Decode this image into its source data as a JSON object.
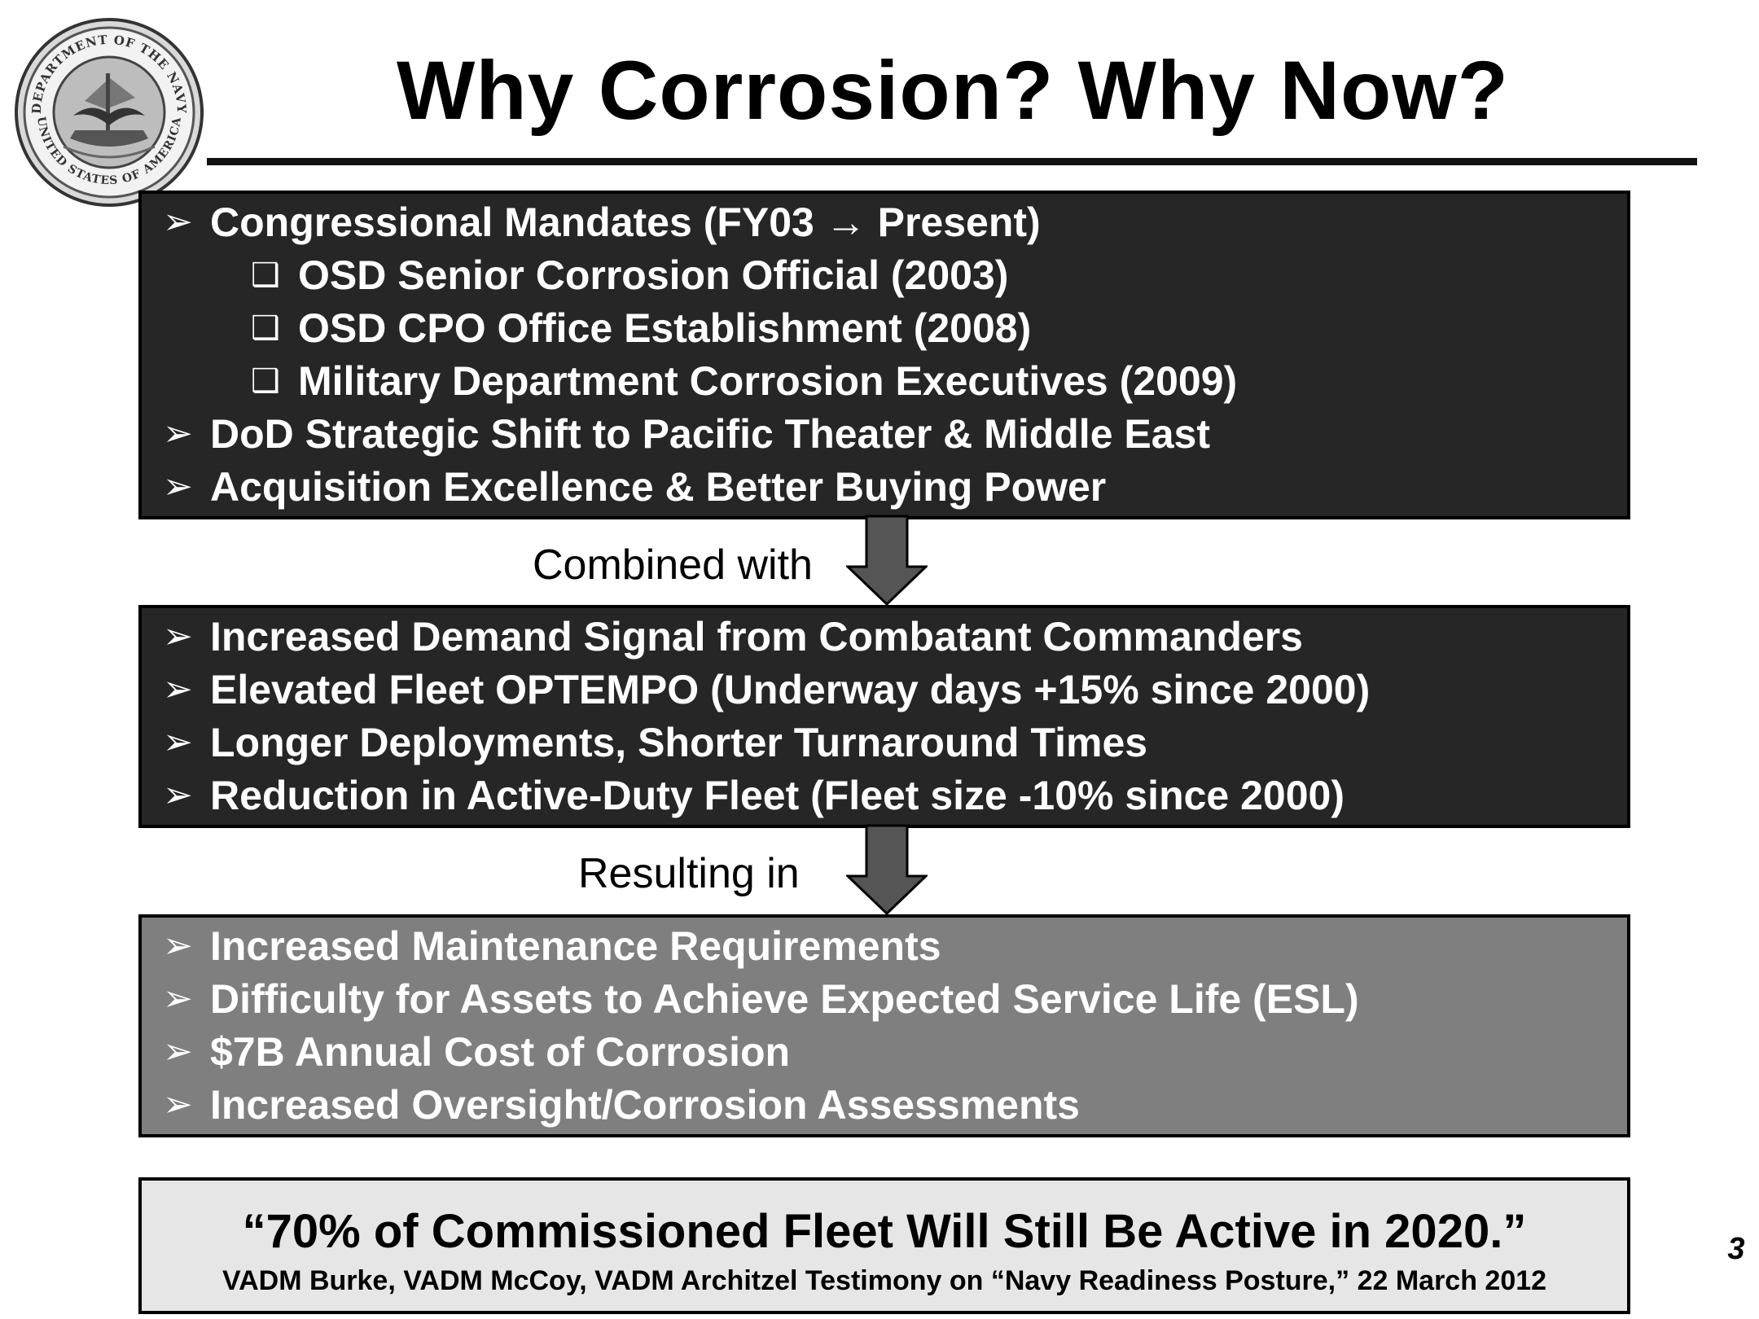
{
  "seal": {
    "top_text": "DEPARTMENT OF THE NAVY",
    "bottom_text": "UNITED STATES OF AMERICA"
  },
  "title": "Why Corrosion?  Why Now?",
  "boxes": [
    {
      "shade": "dark",
      "items": [
        {
          "level": 0,
          "bullet": "➢",
          "text": "Congressional Mandates (FY03 → Present)"
        },
        {
          "level": 1,
          "bullet": "❑",
          "text": "OSD Senior Corrosion Official  (2003)"
        },
        {
          "level": 1,
          "bullet": "❑",
          "text": "OSD CPO Office Establishment (2008)"
        },
        {
          "level": 1,
          "bullet": "❑",
          "text": "Military Department Corrosion Executives (2009)"
        },
        {
          "level": 0,
          "bullet": "➢",
          "text": "DoD Strategic Shift to Pacific Theater & Middle East"
        },
        {
          "level": 0,
          "bullet": "➢",
          "text": "Acquisition Excellence & Better Buying Power"
        }
      ]
    },
    {
      "shade": "dark",
      "items": [
        {
          "level": 0,
          "bullet": "➢",
          "text": "Increased Demand Signal from Combatant Commanders"
        },
        {
          "level": 0,
          "bullet": "➢",
          "text": "Elevated Fleet OPTEMPO (Underway days +15% since 2000)"
        },
        {
          "level": 0,
          "bullet": "➢",
          "text": "Longer Deployments, Shorter Turnaround Times"
        },
        {
          "level": 0,
          "bullet": "➢",
          "text": "Reduction in Active-Duty Fleet (Fleet size -10% since 2000)"
        }
      ]
    },
    {
      "shade": "mid",
      "items": [
        {
          "level": 0,
          "bullet": "➢",
          "text": "Increased Maintenance Requirements"
        },
        {
          "level": 0,
          "bullet": "➢",
          "text": "Difficulty for Assets to Achieve Expected Service Life (ESL)"
        },
        {
          "level": 0,
          "bullet": "➢",
          "text": "$7B Annual Cost of Corrosion"
        },
        {
          "level": 0,
          "bullet": "➢",
          "text": "Increased Oversight/Corrosion Assessments"
        }
      ]
    }
  ],
  "connectors": [
    "Combined with",
    "Resulting in"
  ],
  "quote": {
    "text": "“70% of Commissioned Fleet Will Still Be Active in 2020.”",
    "source": "VADM Burke, VADM McCoy, VADM Architzel Testimony on “Navy Readiness Posture,” 22 March 2012"
  },
  "page_number": "3",
  "colors": {
    "dark_box": "#262626",
    "mid_box": "#7f7f7f",
    "quote_box": "#e6e6e6",
    "arrow": "#555555"
  }
}
